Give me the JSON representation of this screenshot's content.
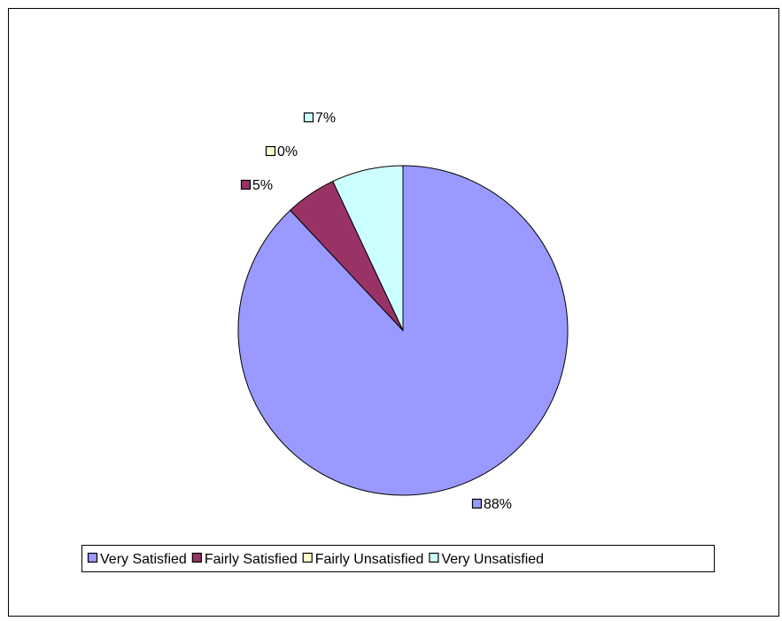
{
  "chart_data": {
    "type": "pie",
    "title": "",
    "categories": [
      "Very Satisfied",
      "Fairly Satisfied",
      "Fairly Unsatisfied",
      "Very Unsatisfied"
    ],
    "values": [
      88,
      5,
      0,
      7
    ],
    "data_labels": [
      "88%",
      "5%",
      "0%",
      "7%"
    ],
    "colors": [
      "#9999ff",
      "#993366",
      "#ffffcc",
      "#ccffff"
    ],
    "legend": {
      "position": "bottom",
      "entries": [
        "Very Satisfied",
        "Fairly Satisfied",
        "Fairly Unsatisfied",
        "Very Unsatisfied"
      ]
    }
  }
}
